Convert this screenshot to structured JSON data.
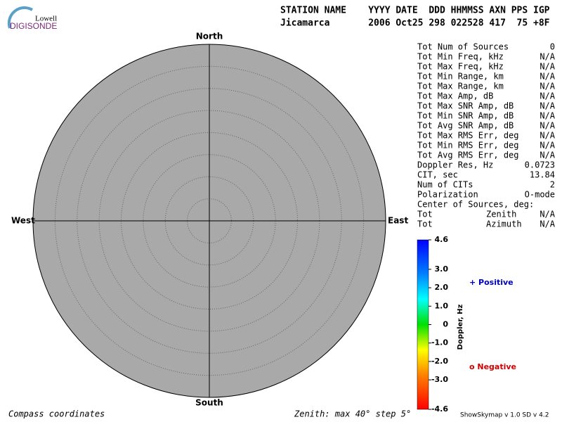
{
  "logo": {
    "line1": "Lowell",
    "line2": "DIGISONDE"
  },
  "header": {
    "labels": "STATION NAME    YYYY DATE  DDD HHMMSS AXN PPS IGP",
    "values": "Jicamarca       2006 Oct25 298 022528 417  75 +8F"
  },
  "compass": {
    "north": "North",
    "south": "South",
    "west": "West",
    "east": "East"
  },
  "stats": [
    {
      "label": "Tot Num of Sources",
      "value": "0"
    },
    {
      "label": "Tot Min Freq, kHz",
      "value": "N/A"
    },
    {
      "label": "Tot Max Freq, kHz",
      "value": "N/A"
    },
    {
      "label": "Tot Min Range, km",
      "value": "N/A"
    },
    {
      "label": "Tot Max Range, km",
      "value": "N/A"
    },
    {
      "label": "Tot Max Amp, dB",
      "value": "N/A"
    },
    {
      "label": "Tot Max SNR Amp, dB",
      "value": "N/A"
    },
    {
      "label": "Tot Min SNR Amp, dB",
      "value": "N/A"
    },
    {
      "label": "Tot Avg SNR Amp, dB",
      "value": "N/A"
    },
    {
      "label": "Tot Max RMS Err, deg",
      "value": "N/A"
    },
    {
      "label": "Tot Min RMS Err, deg",
      "value": "N/A"
    },
    {
      "label": "Tot Avg RMS Err, deg",
      "value": "N/A"
    },
    {
      "label": "Doppler Res, Hz",
      "value": "0.0723"
    },
    {
      "label": "CIT, sec",
      "value": "13.84"
    },
    {
      "label": "Num of CITs",
      "value": "2"
    },
    {
      "label": "Polarization",
      "value": "O-mode"
    }
  ],
  "center": {
    "title": "Center of Sources, deg:",
    "rows": [
      {
        "label": "Tot",
        "name": "Zenith",
        "value": "N/A"
      },
      {
        "label": "Tot",
        "name": "Azimuth",
        "value": "N/A"
      }
    ]
  },
  "colorbar": {
    "title": "Doppler, Hz",
    "ticks": [
      "4.6",
      "3.0",
      "2.0",
      "1.0",
      "0",
      "-1.0",
      "-2.0",
      "-3.0",
      "-4.6"
    ]
  },
  "legend": {
    "positive": "+ Positive",
    "negative": "o Negative"
  },
  "footer": {
    "left": "Compass coordinates",
    "middle": "Zenith: max 40°  step 5°",
    "right": "ShowSkymap v 1.0   SD v 4.2"
  }
}
